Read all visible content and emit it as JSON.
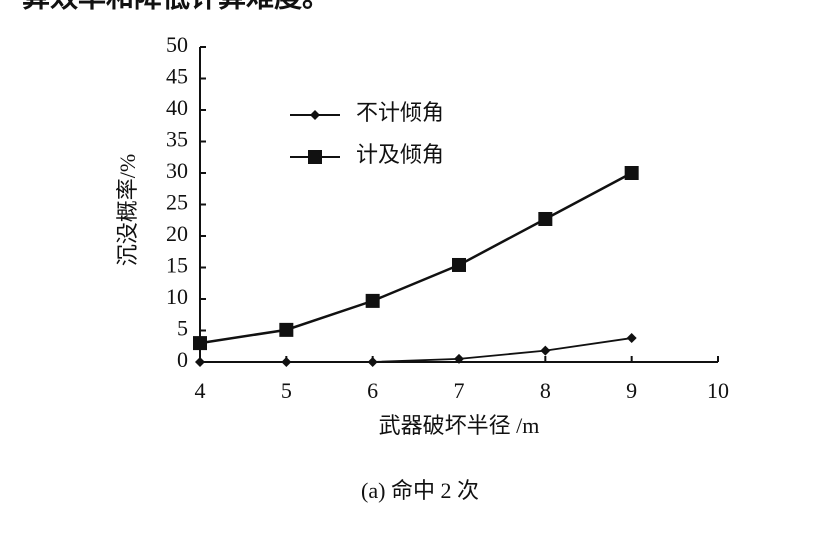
{
  "context_text": "算效率和降低计算难度。",
  "chart_data": {
    "type": "line",
    "title": "(a) 命中 2 次",
    "x_label": "武器破坏半径 /m",
    "y_label": "沉没概率/%",
    "xlim": [
      4,
      10
    ],
    "xticks": [
      4,
      5,
      6,
      7,
      8,
      9,
      10
    ],
    "ylim": [
      0,
      50
    ],
    "yticks": [
      0,
      5,
      10,
      15,
      20,
      25,
      30,
      35,
      40,
      45,
      50
    ],
    "x": [
      4,
      5,
      6,
      7,
      8,
      9
    ],
    "series": [
      {
        "name": "不计倾角",
        "color": "#111111",
        "marker": "diamond",
        "values": [
          0,
          0,
          0,
          0.5,
          1.8,
          3.8
        ]
      },
      {
        "name": "计及倾角",
        "color": "#111111",
        "marker": "square",
        "values": [
          3,
          5.1,
          9.7,
          15.4,
          22.7,
          30
        ]
      }
    ]
  }
}
